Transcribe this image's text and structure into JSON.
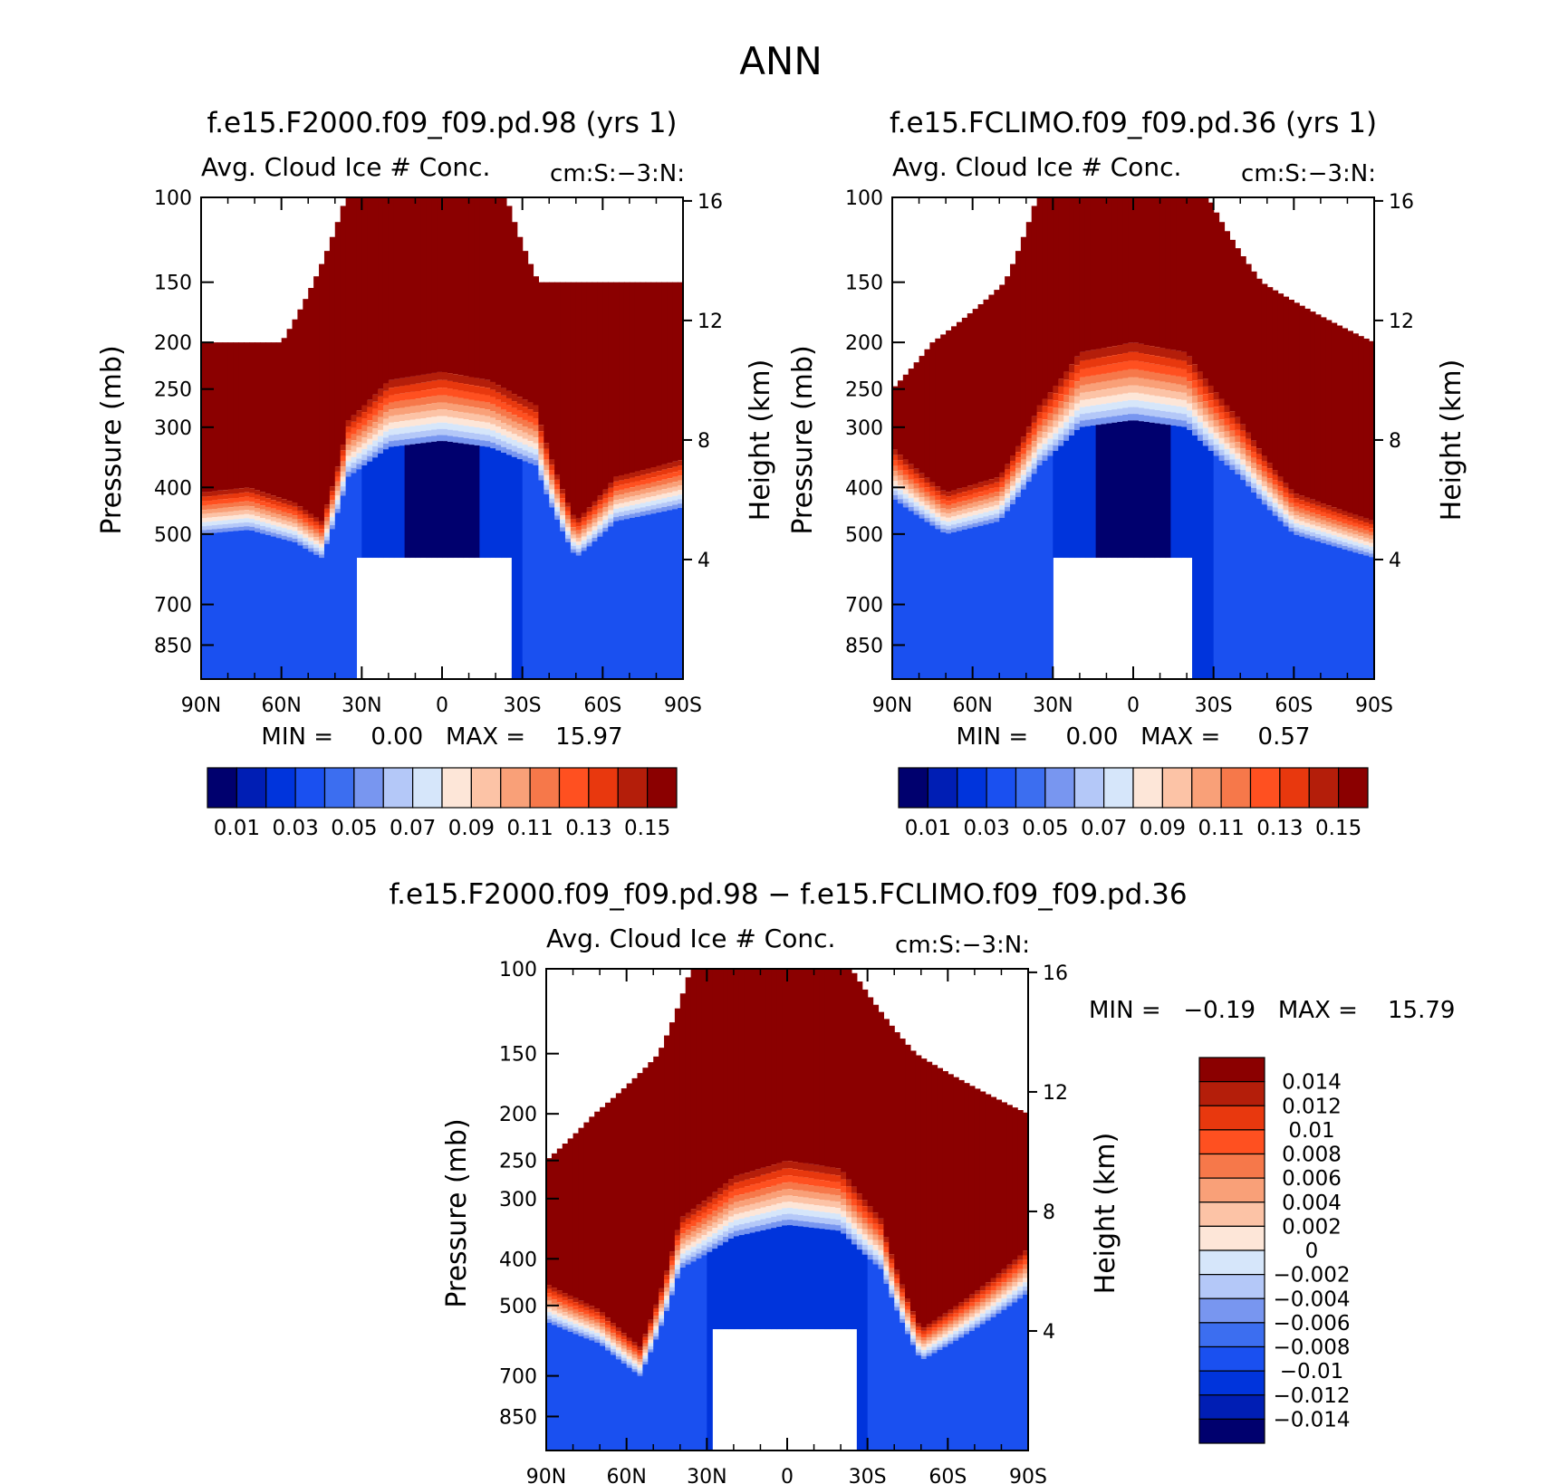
{
  "figure_title": "ANN",
  "colors": {
    "seq_fill": [
      "#00006e",
      "#001eb4",
      "#0034dc",
      "#1a50f0",
      "#3c6ef0",
      "#7896f0",
      "#b4c8f8",
      "#d6e6fa",
      "#fde6d8",
      "#fcc3a6",
      "#f9a078",
      "#f6784a",
      "#ff5020",
      "#e8380e",
      "#b41e0a",
      "#8b0000"
    ],
    "diff_fill": [
      "#00006e",
      "#001eb4",
      "#0034dc",
      "#1a50f0",
      "#3c6ef0",
      "#7896f0",
      "#b4c8f8",
      "#d6e6fa",
      "#fde6d8",
      "#fcc3a6",
      "#f9a078",
      "#f6784a",
      "#ff5020",
      "#e8380e",
      "#b41e0a",
      "#8b0000"
    ],
    "missing": "#ffffff",
    "axis": "#000000"
  },
  "chart_data": [
    {
      "type": "heatmap",
      "title": "f.e15.F2000.f09_f09.pd.98 (yrs  1)",
      "subtitle_left": "Avg. Cloud Ice # Conc.",
      "subtitle_right": "cm:S:−3:N:",
      "ylabel": "Pressure (mb)",
      "ylabel_right": "Height (km)",
      "x_ticks": [
        "90N",
        "60N",
        "30N",
        "0",
        "30S",
        "60S",
        "90S"
      ],
      "x_values": [
        90,
        60,
        30,
        0,
        -30,
        -60,
        -90
      ],
      "y_ticks": [
        "100",
        "150",
        "200",
        "250",
        "300",
        "400",
        "500",
        "700",
        "850"
      ],
      "y_values": [
        100,
        150,
        200,
        250,
        300,
        400,
        500,
        700,
        850
      ],
      "y_range": [
        100,
        1000
      ],
      "y_scale": "log",
      "right_ticks": [
        "16",
        "12",
        "8",
        "4"
      ],
      "right_values": [
        16,
        12,
        8,
        4
      ],
      "stats": "MIN =     0.00   MAX =    15.97",
      "min": 0.0,
      "max": 15.97,
      "contour_levels": [
        0.01,
        0.02,
        0.03,
        0.04,
        0.05,
        0.06,
        0.07,
        0.08,
        0.09,
        0.1,
        0.11,
        0.12,
        0.13,
        0.14,
        0.15
      ],
      "colorbar_labels": [
        "0.01",
        "0.03",
        "0.05",
        "0.07",
        "0.09",
        "0.11",
        "0.13",
        "0.15"
      ],
      "profile": {
        "notes": "Boundaries (lat, pressure mb) of the filled field",
        "top_valid": [
          [
            90,
            200
          ],
          [
            75,
            200
          ],
          [
            60,
            200
          ],
          [
            48,
            150
          ],
          [
            36,
            100
          ],
          [
            -24,
            100
          ],
          [
            -36,
            150
          ],
          [
            -90,
            150
          ]
        ],
        "blue_core_top": [
          [
            90,
            500
          ],
          [
            72,
            490
          ],
          [
            55,
            520
          ],
          [
            45,
            560
          ],
          [
            35,
            380
          ],
          [
            20,
            330
          ],
          [
            0,
            320
          ],
          [
            -18,
            330
          ],
          [
            -35,
            360
          ],
          [
            -50,
            560
          ],
          [
            -65,
            470
          ],
          [
            -90,
            440
          ]
        ],
        "ground": [
          [
            33,
            560
          ],
          [
            -27,
            560
          ]
        ]
      }
    },
    {
      "type": "heatmap",
      "title": "f.e15.FCLIMO.f09_f09.pd.36 (yrs  1)",
      "subtitle_left": "Avg. Cloud Ice # Conc.",
      "subtitle_right": "cm:S:−3:N:",
      "ylabel": "Pressure (mb)",
      "ylabel_right": "Height (km)",
      "x_ticks": [
        "90N",
        "60N",
        "30N",
        "0",
        "30S",
        "60S",
        "90S"
      ],
      "x_values": [
        90,
        60,
        30,
        0,
        -30,
        -60,
        -90
      ],
      "y_ticks": [
        "100",
        "150",
        "200",
        "250",
        "300",
        "400",
        "500",
        "700",
        "850"
      ],
      "y_values": [
        100,
        150,
        200,
        250,
        300,
        400,
        500,
        700,
        850
      ],
      "y_range": [
        100,
        1000
      ],
      "y_scale": "log",
      "right_ticks": [
        "16",
        "12",
        "8",
        "4"
      ],
      "right_values": [
        16,
        12,
        8,
        4
      ],
      "stats": "MIN =     0.00   MAX =     0.57",
      "min": 0.0,
      "max": 0.57,
      "contour_levels": [
        0.01,
        0.02,
        0.03,
        0.04,
        0.05,
        0.06,
        0.07,
        0.08,
        0.09,
        0.1,
        0.11,
        0.12,
        0.13,
        0.14,
        0.15
      ],
      "colorbar_labels": [
        "0.01",
        "0.03",
        "0.05",
        "0.07",
        "0.09",
        "0.11",
        "0.13",
        "0.15"
      ],
      "profile": {
        "notes": "Boundaries (lat, pressure mb) of the filled field",
        "top_valid": [
          [
            90,
            250
          ],
          [
            75,
            200
          ],
          [
            48,
            150
          ],
          [
            36,
            100
          ],
          [
            -28,
            100
          ],
          [
            -48,
            150
          ],
          [
            -90,
            200
          ]
        ],
        "blue_core_top": [
          [
            90,
            420
          ],
          [
            70,
            500
          ],
          [
            50,
            470
          ],
          [
            35,
            360
          ],
          [
            20,
            300
          ],
          [
            0,
            290
          ],
          [
            -20,
            300
          ],
          [
            -40,
            380
          ],
          [
            -60,
            500
          ],
          [
            -90,
            560
          ]
        ],
        "ground": [
          [
            30,
            560
          ],
          [
            -22,
            560
          ]
        ]
      }
    },
    {
      "type": "heatmap",
      "title": "f.e15.F2000.f09_f09.pd.98 − f.e15.FCLIMO.f09_f09.pd.36",
      "subtitle_left": "Avg. Cloud Ice # Conc.",
      "subtitle_right": "cm:S:−3:N:",
      "ylabel": "Pressure (mb)",
      "ylabel_right": "Height (km)",
      "x_ticks": [
        "90N",
        "60N",
        "30N",
        "0",
        "30S",
        "60S",
        "90S"
      ],
      "x_values": [
        90,
        60,
        30,
        0,
        -30,
        -60,
        -90
      ],
      "y_ticks": [
        "100",
        "150",
        "200",
        "250",
        "300",
        "400",
        "500",
        "700",
        "850"
      ],
      "y_values": [
        100,
        150,
        200,
        250,
        300,
        400,
        500,
        700,
        850
      ],
      "y_range": [
        100,
        1000
      ],
      "y_scale": "log",
      "right_ticks": [
        "16",
        "12",
        "8",
        "4"
      ],
      "right_values": [
        16,
        12,
        8,
        4
      ],
      "stats": "MIN =   −0.19   MAX =    15.79",
      "min": -0.19,
      "max": 15.79,
      "contour_levels": [
        -0.014,
        -0.012,
        -0.01,
        -0.008,
        -0.006,
        -0.004,
        -0.002,
        0,
        0.002,
        0.004,
        0.006,
        0.008,
        0.01,
        0.012,
        0.014
      ],
      "colorbar_labels": [
        "0.014",
        "0.012",
        "0.01",
        "0.008",
        "0.006",
        "0.004",
        "0.002",
        "0",
        "−0.002",
        "−0.004",
        "−0.006",
        "−0.008",
        "−0.01",
        "−0.012",
        "−0.014"
      ],
      "colorbar_orientation": "vertical",
      "profile": {
        "notes": "Boundaries (lat, pressure mb) of the filled field",
        "top_valid": [
          [
            90,
            250
          ],
          [
            72,
            200
          ],
          [
            48,
            150
          ],
          [
            36,
            100
          ],
          [
            -24,
            100
          ],
          [
            -48,
            150
          ],
          [
            -90,
            200
          ]
        ],
        "blue_core_top": [
          [
            90,
            540
          ],
          [
            70,
            600
          ],
          [
            55,
            700
          ],
          [
            40,
            420
          ],
          [
            20,
            360
          ],
          [
            0,
            340
          ],
          [
            -20,
            350
          ],
          [
            -35,
            420
          ],
          [
            -50,
            650
          ],
          [
            -70,
            560
          ],
          [
            -90,
            470
          ]
        ],
        "ground": [
          [
            28,
            560
          ],
          [
            -26,
            560
          ]
        ]
      }
    }
  ]
}
